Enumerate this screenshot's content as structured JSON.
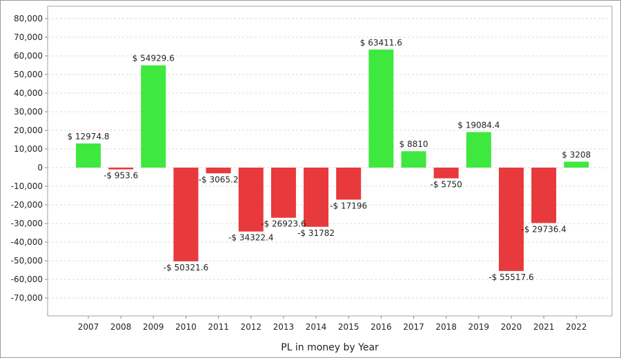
{
  "chart_data": {
    "type": "bar",
    "xlabel": "PL in money by Year",
    "ylabel": "",
    "ylim": [
      -80000,
      85000
    ],
    "yticks": [
      80000,
      70000,
      60000,
      50000,
      40000,
      30000,
      20000,
      10000,
      0,
      -10000,
      -20000,
      -30000,
      -40000,
      -50000,
      -60000,
      -70000
    ],
    "ytick_labels": [
      "80,000",
      "70,000",
      "60,000",
      "50,000",
      "40,000",
      "30,000",
      "20,000",
      "10,000",
      "0",
      "-10,000",
      "-20,000",
      "-30,000",
      "-40,000",
      "-50,000",
      "-60,000",
      "-70,000"
    ],
    "grid": true,
    "categories": [
      "2007",
      "2008",
      "2009",
      "2010",
      "2011",
      "2012",
      "2013",
      "2014",
      "2015",
      "2016",
      "2017",
      "2018",
      "2019",
      "2020",
      "2021",
      "2022"
    ],
    "values": [
      12974.8,
      -953.6,
      54929.6,
      -50321.6,
      -3065.2,
      -34322.4,
      -26923.6,
      -31782,
      -17196,
      63411.6,
      8810,
      -5750,
      19084.4,
      -55517.6,
      -29736.4,
      3208
    ],
    "data_labels": [
      "$ 12974.8",
      "-$ 953.6",
      "$ 54929.6",
      "-$ 50321.6",
      "-$ 3065.2",
      "-$ 34322.4",
      "-$ 26923.6",
      "-$ 31782",
      "-$ 17196",
      "$ 63411.6",
      "$ 8810",
      "-$ 5750",
      "$ 19084.4",
      "-$ 55517.6",
      "-$ 29736.4",
      "$ 3208"
    ],
    "colors": {
      "positive": "#3fe83f",
      "negative": "#e8393c"
    }
  }
}
